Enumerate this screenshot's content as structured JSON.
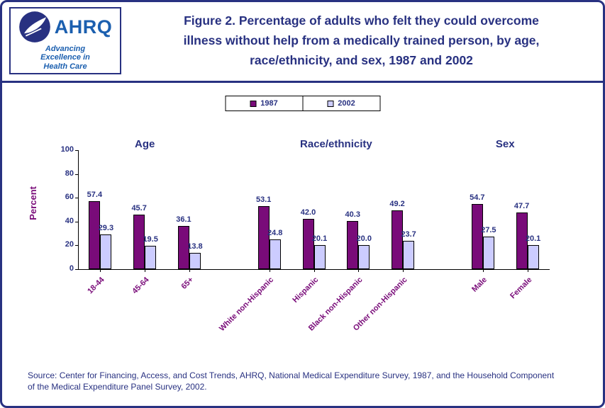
{
  "header": {
    "logo": {
      "acronym": "AHRQ",
      "tagline_lines": [
        "Advancing",
        "Excellence in",
        "Health Care"
      ]
    },
    "title_lines": [
      "Figure 2. Percentage of adults who felt they could overcome",
      "illness without help from a medically trained person, by age,",
      "race/ethnicity, and sex, 1987 and 2002"
    ]
  },
  "chart_data": {
    "type": "bar",
    "title": "Figure 2. Percentage of adults who felt they could overcome illness without help from a medically trained person, by age, race/ethnicity, and sex, 1987 and 2002",
    "ylabel": "Percent",
    "xlabel": "",
    "ylim": [
      0,
      100
    ],
    "ytick_step": 20,
    "grid": false,
    "legend_position": "top-center",
    "groups": [
      {
        "label": "Age",
        "categories": [
          "18-44",
          "45-64",
          "65+"
        ]
      },
      {
        "label": "Race/ethnicity",
        "categories": [
          "White non-Hispanic",
          "Hispanic",
          "Black non-Hispanic",
          "Other non-Hispanic"
        ]
      },
      {
        "label": "Sex",
        "categories": [
          "Male",
          "Female"
        ]
      }
    ],
    "series": [
      {
        "name": "1987",
        "color": "#790b79",
        "values": [
          57.4,
          45.7,
          36.1,
          53.1,
          42.0,
          40.3,
          49.2,
          54.7,
          47.7
        ]
      },
      {
        "name": "2002",
        "color": "#ccccff",
        "values": [
          29.3,
          19.5,
          13.8,
          24.8,
          20.1,
          20.0,
          23.7,
          27.5,
          20.1
        ]
      }
    ]
  },
  "footer": {
    "source": "Source: Center for Financing, Access, and Cost Trends, AHRQ, National Medical Expenditure Survey, 1987, and the Household Component of the Medical Expenditure Panel Survey, 2002."
  },
  "colors": {
    "navy": "#283181",
    "purple": "#790b79",
    "bar_1987": "#790b79",
    "bar_2002": "#ccccff",
    "axis": "#000000"
  }
}
